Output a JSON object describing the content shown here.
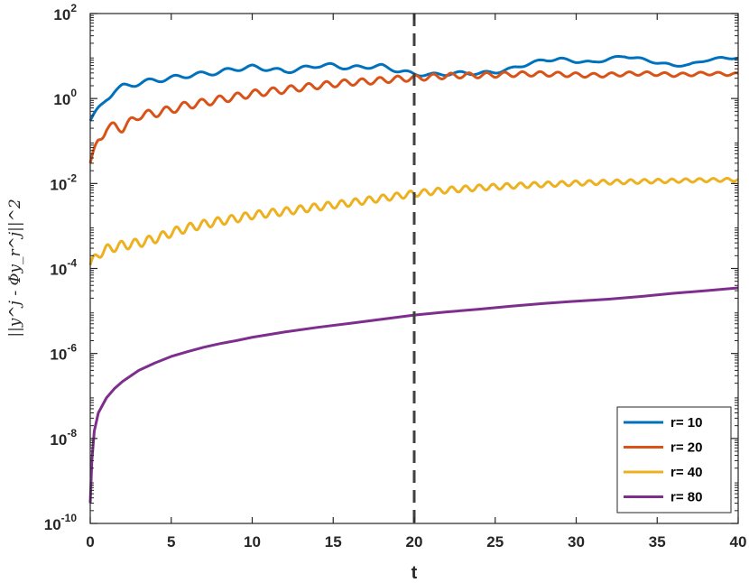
{
  "chart_data": {
    "type": "line",
    "xlabel": "t",
    "ylabel": "||y^j - Φy_r^j||^2",
    "yscale": "log",
    "xlim": [
      0,
      40
    ],
    "ylim_exponents": [
      -10,
      2
    ],
    "x_ticks": [
      "0",
      "5",
      "10",
      "15",
      "20",
      "25",
      "30",
      "35",
      "40"
    ],
    "y_tick_base": "10",
    "y_tick_exponents": [
      "-10",
      "-8",
      "-6",
      "-4",
      "-2",
      "0",
      "2"
    ],
    "vertical_line_x": 20,
    "grid": false,
    "legend_position": "bottom-right",
    "series": [
      {
        "name": "r= 10",
        "color": "#0072BD",
        "points": [
          [
            0,
            0.3
          ],
          [
            0.5,
            0.55
          ],
          [
            1,
            1.0
          ],
          [
            1.5,
            1.5
          ],
          [
            2,
            1.9
          ],
          [
            3,
            2.3
          ],
          [
            4,
            2.7
          ],
          [
            5,
            3.0
          ],
          [
            6,
            3.5
          ],
          [
            7,
            3.8
          ],
          [
            8,
            4.2
          ],
          [
            9,
            5.0
          ],
          [
            10,
            5.5
          ],
          [
            11,
            5.0
          ],
          [
            12,
            4.3
          ],
          [
            13,
            5.0
          ],
          [
            14,
            6.0
          ],
          [
            15,
            6.0
          ],
          [
            16,
            5.2
          ],
          [
            17,
            5.6
          ],
          [
            18,
            5.8
          ],
          [
            19,
            4.5
          ],
          [
            20,
            3.8
          ],
          [
            21,
            3.6
          ],
          [
            22,
            3.8
          ],
          [
            23,
            4.0
          ],
          [
            24,
            3.9
          ],
          [
            25,
            4.2
          ],
          [
            26,
            5.0
          ],
          [
            27,
            6.5
          ],
          [
            28,
            8.0
          ],
          [
            29,
            8.5
          ],
          [
            30,
            7.5
          ],
          [
            31,
            7.0
          ],
          [
            32,
            8.5
          ],
          [
            33,
            10.0
          ],
          [
            34,
            8.5
          ],
          [
            35,
            7.0
          ],
          [
            36,
            6.0
          ],
          [
            37,
            6.2
          ],
          [
            38,
            8.0
          ],
          [
            39,
            9.0
          ],
          [
            40,
            9.0
          ]
        ],
        "wiggle": 0.06,
        "period": 1.6
      },
      {
        "name": "r= 20",
        "color": "#D95319",
        "points": [
          [
            0,
            0.03
          ],
          [
            0.5,
            0.1
          ],
          [
            1,
            0.2
          ],
          [
            1.5,
            0.22
          ],
          [
            2,
            0.2
          ],
          [
            2.5,
            0.28
          ],
          [
            3,
            0.4
          ],
          [
            4,
            0.45
          ],
          [
            5,
            0.55
          ],
          [
            6,
            0.7
          ],
          [
            7,
            0.8
          ],
          [
            8,
            0.95
          ],
          [
            9,
            1.1
          ],
          [
            10,
            1.3
          ],
          [
            11,
            1.45
          ],
          [
            12,
            1.6
          ],
          [
            13,
            1.8
          ],
          [
            14,
            2.0
          ],
          [
            15,
            2.2
          ],
          [
            16,
            2.4
          ],
          [
            17,
            2.5
          ],
          [
            18,
            2.7
          ],
          [
            19,
            2.9
          ],
          [
            20,
            3.0
          ],
          [
            21,
            3.2
          ],
          [
            22,
            3.4
          ],
          [
            23,
            3.5
          ],
          [
            24,
            3.5
          ],
          [
            25,
            3.6
          ],
          [
            26,
            3.7
          ],
          [
            27,
            3.8
          ],
          [
            28,
            3.8
          ],
          [
            29,
            3.7
          ],
          [
            30,
            3.6
          ],
          [
            31,
            3.5
          ],
          [
            32,
            3.6
          ],
          [
            33,
            3.8
          ],
          [
            34,
            3.9
          ],
          [
            35,
            3.8
          ],
          [
            36,
            3.6
          ],
          [
            37,
            3.7
          ],
          [
            38,
            3.9
          ],
          [
            39,
            3.8
          ],
          [
            40,
            3.7
          ]
        ],
        "wiggle": 0.1,
        "period": 1.1
      },
      {
        "name": "r= 40",
        "color": "#EDB120",
        "points": [
          [
            0,
            0.00012
          ],
          [
            0.5,
            0.00022
          ],
          [
            1,
            0.00028
          ],
          [
            1.5,
            0.00032
          ],
          [
            2,
            0.00035
          ],
          [
            3,
            0.0004
          ],
          [
            4,
            0.0005
          ],
          [
            5,
            0.0007
          ],
          [
            6,
            0.0009
          ],
          [
            7,
            0.0011
          ],
          [
            8,
            0.0013
          ],
          [
            9,
            0.0015
          ],
          [
            10,
            0.0018
          ],
          [
            12,
            0.0022
          ],
          [
            14,
            0.0028
          ],
          [
            16,
            0.0035
          ],
          [
            18,
            0.0045
          ],
          [
            20,
            0.0058
          ],
          [
            22,
            0.007
          ],
          [
            24,
            0.008
          ],
          [
            26,
            0.0088
          ],
          [
            28,
            0.0095
          ],
          [
            30,
            0.0102
          ],
          [
            32,
            0.0108
          ],
          [
            34,
            0.0112
          ],
          [
            36,
            0.0116
          ],
          [
            38,
            0.012
          ],
          [
            40,
            0.0123
          ]
        ],
        "wiggle": 0.11,
        "period": 0.85
      },
      {
        "name": "r= 80",
        "color": "#7E2F8E",
        "points": [
          [
            0,
            3e-10
          ],
          [
            0.1,
            3e-09
          ],
          [
            0.25,
            1.5e-08
          ],
          [
            0.5,
            4e-08
          ],
          [
            1,
            9e-08
          ],
          [
            1.5,
            1.5e-07
          ],
          [
            2,
            2.2e-07
          ],
          [
            3,
            4e-07
          ],
          [
            4,
            6e-07
          ],
          [
            5,
            8.5e-07
          ],
          [
            6,
            1.1e-06
          ],
          [
            7,
            1.4e-06
          ],
          [
            8,
            1.7e-06
          ],
          [
            9,
            2e-06
          ],
          [
            10,
            2.4e-06
          ],
          [
            12,
            3.2e-06
          ],
          [
            14,
            4.1e-06
          ],
          [
            16,
            5.1e-06
          ],
          [
            18,
            6.4e-06
          ],
          [
            20,
            8e-06
          ],
          [
            22,
            9.5e-06
          ],
          [
            24,
            1.1e-05
          ],
          [
            26,
            1.3e-05
          ],
          [
            28,
            1.5e-05
          ],
          [
            30,
            1.7e-05
          ],
          [
            32,
            1.9e-05
          ],
          [
            34,
            2.2e-05
          ],
          [
            36,
            2.6e-05
          ],
          [
            38,
            3e-05
          ],
          [
            40,
            3.5e-05
          ]
        ],
        "wiggle": 0,
        "period": 1
      }
    ]
  }
}
